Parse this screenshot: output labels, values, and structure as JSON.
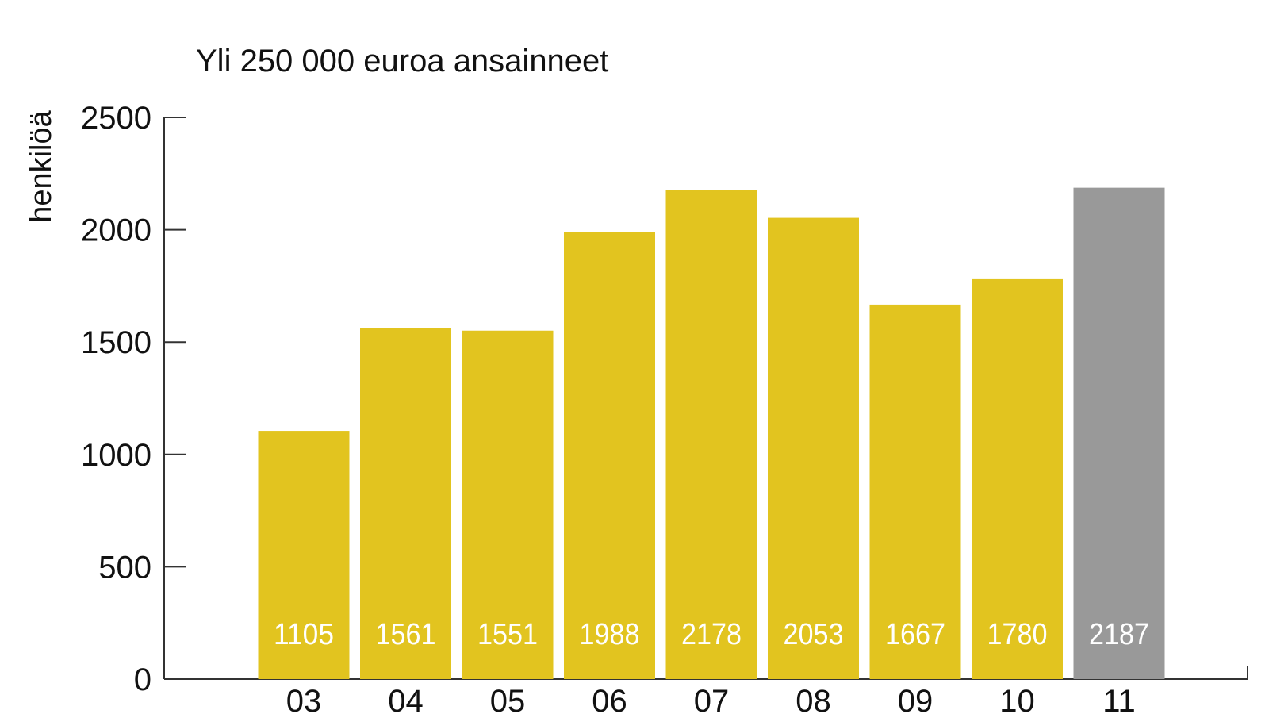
{
  "chart_data": {
    "type": "bar",
    "title": "Yli 250 000 euroa ansainneet",
    "y_label": "henkilöä",
    "categories": [
      "03",
      "04",
      "05",
      "06",
      "07",
      "08",
      "09",
      "10",
      "11"
    ],
    "values": [
      1105,
      1561,
      1551,
      1988,
      2178,
      2053,
      1667,
      1780,
      2187
    ],
    "colors": [
      "#e2c41f",
      "#e2c41f",
      "#e2c41f",
      "#e2c41f",
      "#e2c41f",
      "#e2c41f",
      "#e2c41f",
      "#e2c41f",
      "#999999"
    ],
    "ylim": [
      0,
      2500
    ],
    "yticks": [
      0,
      500,
      1000,
      1500,
      2000,
      2500
    ],
    "grid": false
  }
}
